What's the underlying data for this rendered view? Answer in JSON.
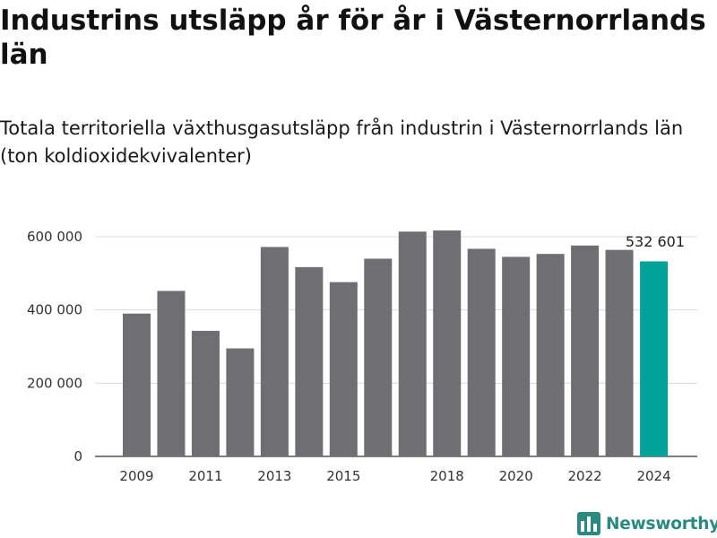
{
  "chart_data": {
    "type": "bar",
    "title": "Industrins utsläpp år för år i Västernorrlands län",
    "subtitle": "Totala territoriella växthusgasutsläpp från industrin i Västernorrlands län (ton koldioxidekvivalenter)",
    "categories": [
      "2009",
      "2010",
      "2011",
      "2012",
      "2013",
      "2014",
      "2015",
      "2016",
      "2017",
      "2018",
      "2019",
      "2020",
      "2021",
      "2022",
      "2023",
      "2024"
    ],
    "values": [
      390000,
      452000,
      343000,
      295000,
      572000,
      517000,
      476000,
      540000,
      614000,
      617000,
      567000,
      545000,
      553000,
      576000,
      564000,
      532601
    ],
    "x_tick_labels": [
      "2009",
      "2011",
      "2013",
      "2015",
      "2018",
      "2020",
      "2022",
      "2024"
    ],
    "y_ticks": [
      {
        "value": 0,
        "label": "0"
      },
      {
        "value": 200000,
        "label": "200 000"
      },
      {
        "value": 400000,
        "label": "400 000"
      },
      {
        "value": 600000,
        "label": "600 000"
      }
    ],
    "ylim": [
      0,
      600000
    ],
    "grid": true,
    "data_labels": [
      {
        "category": "2024",
        "text": "532 601"
      }
    ],
    "colors": {
      "default": "#6e6e73",
      "highlight": "#00a39a",
      "grid": "#dcdcdc",
      "axis": "#333333"
    },
    "highlight_category": "2024"
  },
  "logo": {
    "text": "Newsworthy",
    "color": "#2a8a7f",
    "icon": "newsworthy-bar-chart-logo-icon"
  }
}
